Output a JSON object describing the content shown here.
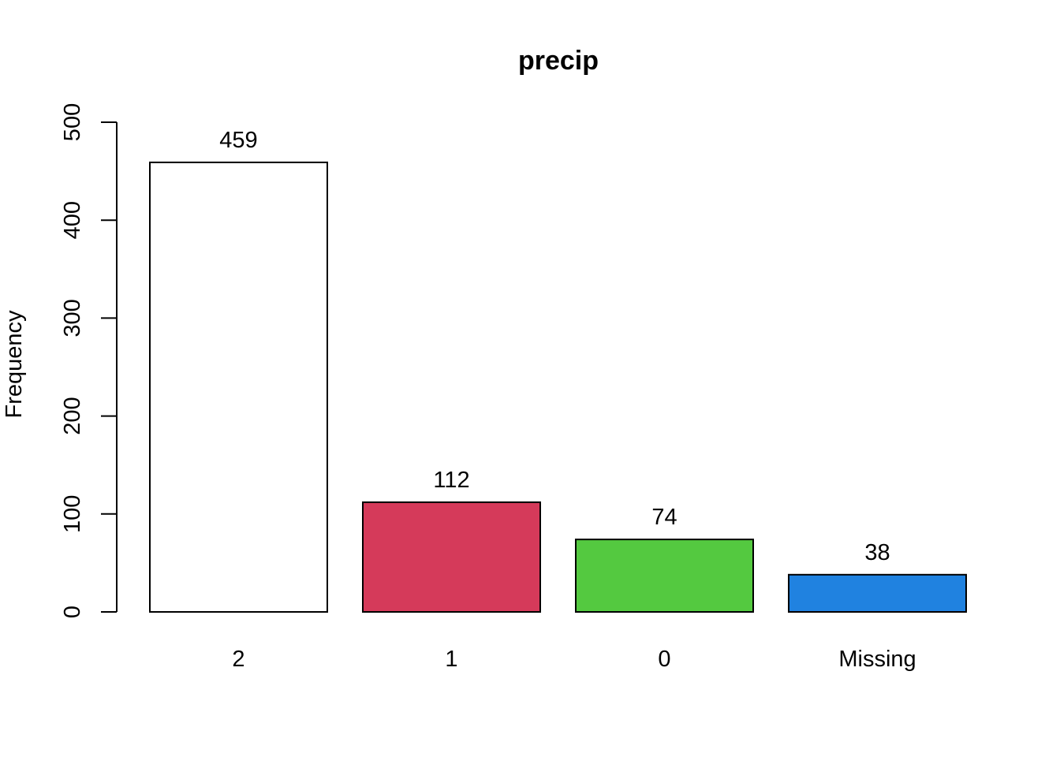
{
  "chart_data": {
    "type": "bar",
    "title": "precip",
    "xlabel": "",
    "ylabel": "Frequency",
    "categories": [
      "2",
      "1",
      "0",
      "Missing"
    ],
    "values": [
      459,
      112,
      74,
      38
    ],
    "colors": [
      "#FFFFFF",
      "#D53A5A",
      "#54C940",
      "#2082E0"
    ],
    "ylim": [
      0,
      500
    ],
    "yticks": [
      0,
      100,
      200,
      300,
      400,
      500
    ],
    "grid": false,
    "legend": "none",
    "data_labels": true
  }
}
